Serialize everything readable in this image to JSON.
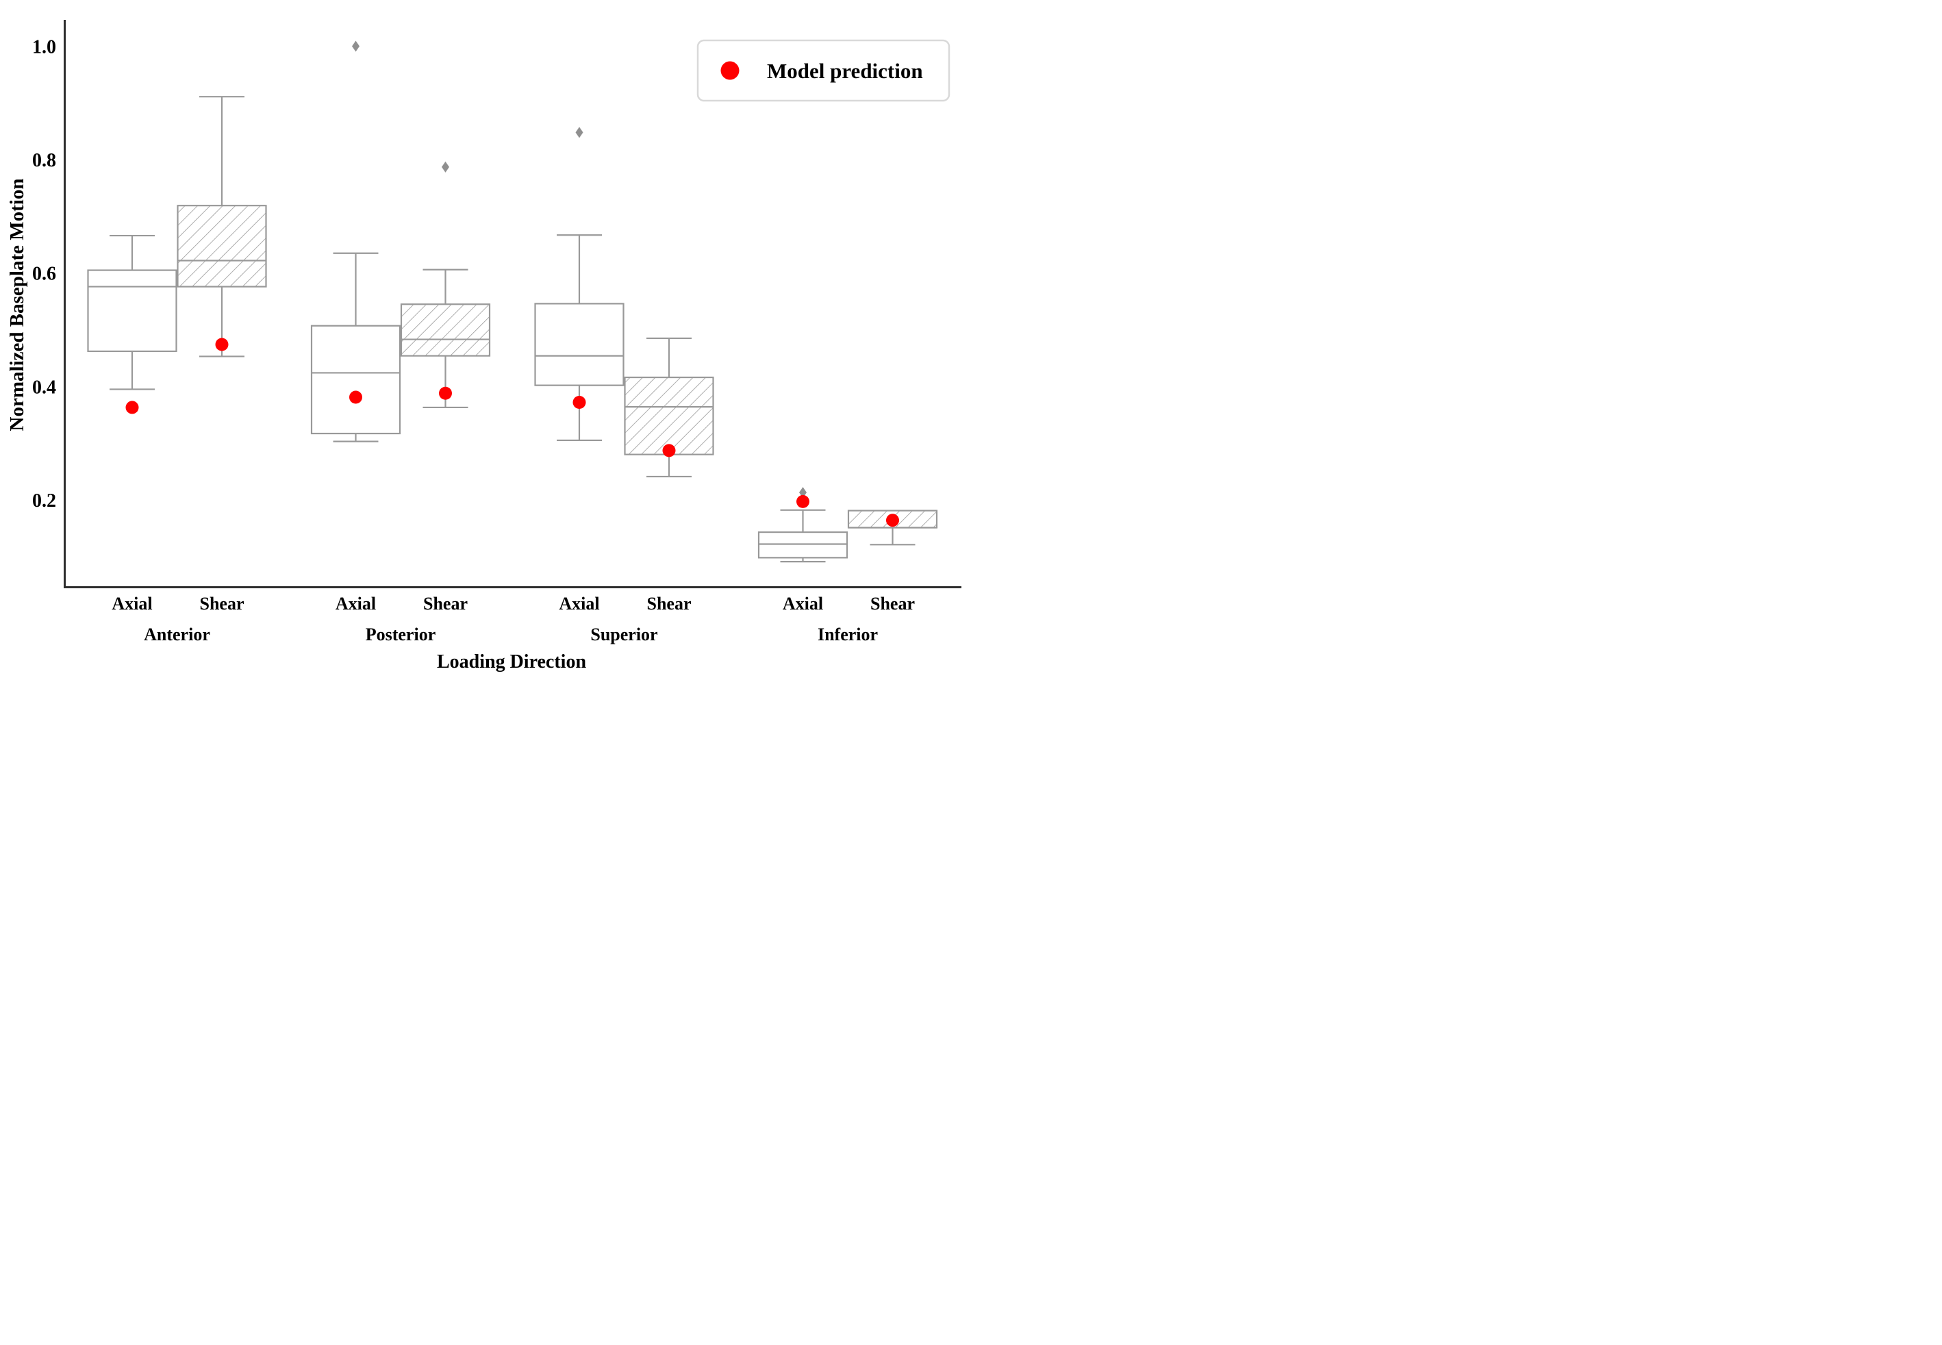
{
  "chart_data": {
    "type": "boxplot",
    "title": "",
    "xlabel": "Loading Direction",
    "ylabel": "Normalized Baseplate Motion",
    "ylim": [
      0.045,
      1.045
    ],
    "yticks": [
      "1.0",
      "0.8",
      "0.6",
      "0.4",
      "0.2"
    ],
    "ytick_values": [
      1.0,
      0.8,
      0.6,
      0.4,
      0.2
    ],
    "groups": [
      "Anterior",
      "Posterior",
      "Superior",
      "Inferior"
    ],
    "conditions": [
      "Axial",
      "Shear"
    ],
    "legend": {
      "label": "Model prediction",
      "marker": "circle",
      "color": "#fe0000",
      "position": "upper-right"
    },
    "grid": false,
    "boxes": [
      {
        "group": "Anterior",
        "condition": "Axial",
        "hatched": false,
        "whisker_low": 0.395,
        "q1": 0.462,
        "median": 0.576,
        "q3": 0.605,
        "whisker_high": 0.666,
        "outliers": [],
        "model_prediction": 0.363
      },
      {
        "group": "Anterior",
        "condition": "Shear",
        "hatched": true,
        "whisker_low": 0.453,
        "q1": 0.576,
        "median": 0.622,
        "q3": 0.719,
        "whisker_high": 0.911,
        "outliers": [],
        "model_prediction": 0.474
      },
      {
        "group": "Posterior",
        "condition": "Axial",
        "hatched": false,
        "whisker_low": 0.303,
        "q1": 0.317,
        "median": 0.424,
        "q3": 0.507,
        "whisker_high": 0.635,
        "outliers": [
          1.0
        ],
        "model_prediction": 0.381
      },
      {
        "group": "Posterior",
        "condition": "Shear",
        "hatched": true,
        "whisker_low": 0.363,
        "q1": 0.454,
        "median": 0.483,
        "q3": 0.545,
        "whisker_high": 0.606,
        "outliers": [
          0.787
        ],
        "model_prediction": 0.388
      },
      {
        "group": "Superior",
        "condition": "Axial",
        "hatched": false,
        "whisker_low": 0.305,
        "q1": 0.402,
        "median": 0.454,
        "q3": 0.546,
        "whisker_high": 0.667,
        "outliers": [
          0.848
        ],
        "model_prediction": 0.372
      },
      {
        "group": "Superior",
        "condition": "Shear",
        "hatched": true,
        "whisker_low": 0.241,
        "q1": 0.28,
        "median": 0.364,
        "q3": 0.416,
        "whisker_high": 0.485,
        "outliers": [],
        "model_prediction": 0.287
      },
      {
        "group": "Inferior",
        "condition": "Axial",
        "hatched": false,
        "whisker_low": 0.091,
        "q1": 0.098,
        "median": 0.122,
        "q3": 0.143,
        "whisker_high": 0.182,
        "outliers": [
          0.213
        ],
        "model_prediction": 0.197
      },
      {
        "group": "Inferior",
        "condition": "Shear",
        "hatched": true,
        "whisker_low": 0.121,
        "q1": 0.151,
        "median": 0.151,
        "q3": 0.181,
        "whisker_high": 0.181,
        "outliers": [],
        "model_prediction": 0.164
      }
    ],
    "colors": {
      "box_edge": "#999999",
      "box_fill": "#ffffff",
      "hatch_line": "#999999",
      "axis_spine": "#2e2e2e",
      "model_dot": "#fe0000",
      "outlier": "#8f8f8f",
      "legend_border": "#d9d9d9",
      "text": "#000000"
    }
  }
}
